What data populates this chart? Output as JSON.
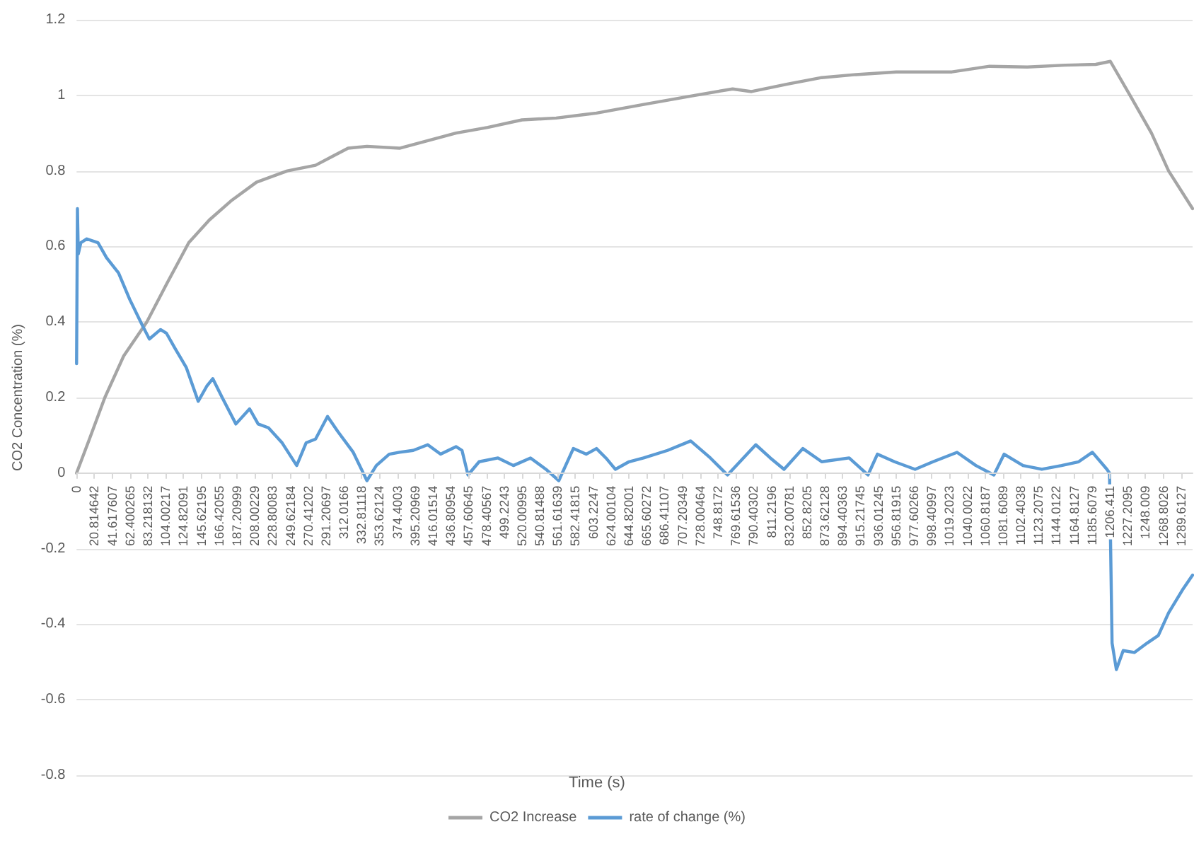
{
  "chart_data": {
    "type": "line",
    "xlabel": "Time (s)",
    "ylabel": "CO2 Concentration (%)",
    "xlim": [
      0,
      1303
    ],
    "xticks": [
      0,
      20.814642,
      41.617607,
      62.400265,
      83.218132,
      104.00217,
      124.82091,
      145.62195,
      166.42055,
      187.20999,
      208.00229,
      228.80083,
      249.62184,
      270.41202,
      291.20697,
      312.0166,
      332.81118,
      353.62124,
      374.4003,
      395.20969,
      416.01514,
      436.80954,
      457.60645,
      478.40567,
      499.2243,
      520.00995,
      540.81488,
      561.61639,
      582.41815,
      603.2247,
      624.00104,
      644.82001,
      665.60272,
      686.41107,
      707.20349,
      728.00464,
      748.8172,
      769.61536,
      790.40302,
      811.2196,
      832.00781,
      852.8205,
      873.62128,
      894.40363,
      915.21745,
      936.01245,
      956.81915,
      977.60266,
      998.40997,
      1019.2023,
      1040.0022,
      1060.8187,
      1081.6089,
      1102.4038,
      1123.2075,
      1144.0122,
      1164.8127,
      1185.6079,
      1206.411,
      1227.2095,
      1248.009,
      1268.8026,
      1289.6127
    ],
    "ylim": [
      -0.8,
      1.2
    ],
    "yticks": [
      -0.8,
      -0.6,
      -0.4,
      -0.2,
      0,
      0.2,
      0.4,
      0.6,
      0.8,
      1,
      1.2
    ],
    "grid": "y",
    "legend": "bottom",
    "marker": "none",
    "line_style": "solid",
    "series": [
      {
        "name": "CO2 Increase",
        "color": "#a5a5a5",
        "x": [
          0,
          15,
          33,
          55,
          82,
          105,
          131,
          155,
          180,
          210,
          246,
          279,
          300,
          317,
          339,
          377,
          410,
          443,
          480,
          520,
          560,
          596,
          607,
          660,
          717,
          766,
          788,
          830,
          870,
          910,
          957,
          1022,
          1066,
          1110,
          1154,
          1190,
          1207,
          1230,
          1255,
          1275,
          1303
        ],
        "values": [
          0,
          0.09,
          0.2,
          0.31,
          0.4,
          0.5,
          0.61,
          0.67,
          0.72,
          0.77,
          0.8,
          0.815,
          0.84,
          0.86,
          0.865,
          0.86,
          0.88,
          0.9,
          0.915,
          0.935,
          0.94,
          0.95,
          0.953,
          0.975,
          0.998,
          1.017,
          1.01,
          1.03,
          1.047,
          1.055,
          1.062,
          1.062,
          1.077,
          1.075,
          1.08,
          1.082,
          1.09,
          1.0,
          0.9,
          0.8,
          0.7
        ]
      },
      {
        "name": "rate of change (%)",
        "color": "#5b9bd5",
        "x": [
          0,
          1,
          2,
          5,
          12,
          25,
          35,
          49,
          62,
          77,
          85,
          98,
          105,
          115,
          128,
          142,
          152,
          159,
          170,
          186,
          202,
          212,
          224,
          240,
          257,
          268,
          279,
          293,
          305,
          323,
          339,
          350,
          365,
          377,
          393,
          410,
          425,
          443,
          450,
          457,
          470,
          492,
          510,
          530,
          548,
          563,
          580,
          595,
          607,
          618,
          629,
          645,
          662,
          690,
          717,
          740,
          760,
          793,
          810,
          826,
          848,
          870,
          902,
          924,
          935,
          955,
          979,
          1000,
          1028,
          1050,
          1071,
          1083,
          1105,
          1127,
          1150,
          1170,
          1186,
          1203,
          1206,
          1209,
          1214,
          1222,
          1235,
          1250,
          1263,
          1275,
          1291,
          1303
        ],
        "values": [
          0.29,
          0.7,
          0.58,
          0.61,
          0.62,
          0.61,
          0.57,
          0.53,
          0.46,
          0.39,
          0.355,
          0.38,
          0.37,
          0.33,
          0.28,
          0.19,
          0.23,
          0.25,
          0.2,
          0.13,
          0.17,
          0.13,
          0.12,
          0.08,
          0.02,
          0.08,
          0.09,
          0.15,
          0.11,
          0.055,
          -0.02,
          0.02,
          0.05,
          0.055,
          0.06,
          0.075,
          0.05,
          0.07,
          0.06,
          -0.005,
          0.03,
          0.04,
          0.02,
          0.04,
          0.01,
          -0.02,
          0.065,
          0.05,
          0.065,
          0.04,
          0.01,
          0.03,
          0.04,
          0.06,
          0.085,
          0.04,
          -0.005,
          0.075,
          0.04,
          0.01,
          0.065,
          0.03,
          0.04,
          -0.005,
          0.05,
          0.03,
          0.01,
          0.03,
          0.055,
          0.02,
          -0.005,
          0.05,
          0.02,
          0.01,
          0.02,
          0.03,
          0.055,
          0.01,
          0.0,
          -0.45,
          -0.52,
          -0.47,
          -0.475,
          -0.45,
          -0.43,
          -0.37,
          -0.31,
          -0.27
        ]
      }
    ]
  }
}
